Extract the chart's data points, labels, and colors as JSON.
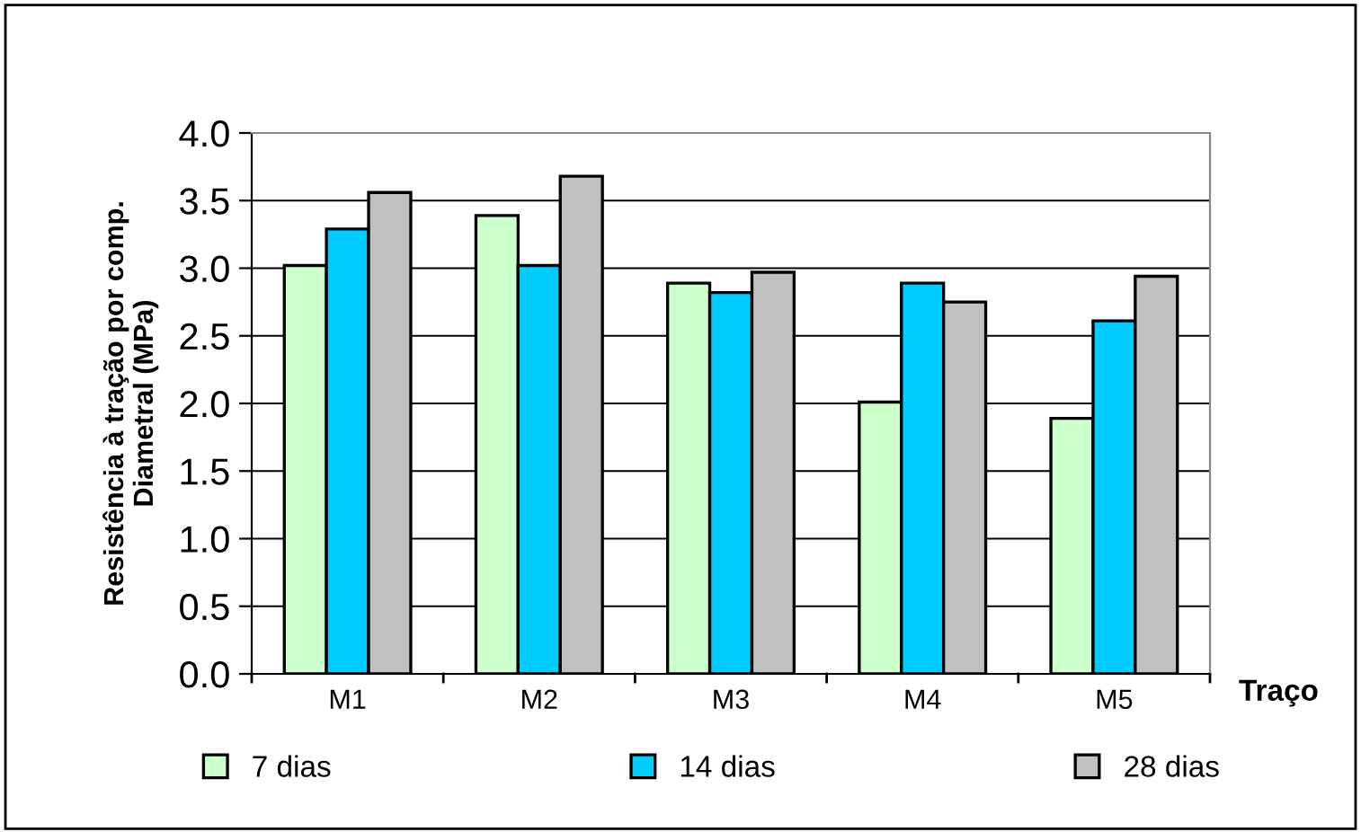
{
  "chart_data": {
    "type": "bar",
    "ylabel": "Resistência à tração por comp.\nDiametral (MPa)",
    "xlabel": "Traço",
    "categories": [
      "M1",
      "M2",
      "M3",
      "M4",
      "M5"
    ],
    "series": [
      {
        "name": "7 dias",
        "color": "#ccffcc",
        "values": [
          3.02,
          3.39,
          2.89,
          2.01,
          1.89
        ]
      },
      {
        "name": "14 dias",
        "color": "#00ccff",
        "values": [
          3.29,
          3.02,
          2.82,
          2.89,
          2.61
        ]
      },
      {
        "name": "28 dias",
        "color": "#c0c0c0",
        "values": [
          3.56,
          3.68,
          2.97,
          2.75,
          2.94
        ]
      }
    ],
    "ylim": [
      0,
      4
    ],
    "yticks": [
      {
        "value": 0,
        "label": "0.0"
      },
      {
        "value": 0.5,
        "label": "0.5"
      },
      {
        "value": 1,
        "label": "1.0"
      },
      {
        "value": 1.5,
        "label": "1.5"
      },
      {
        "value": 2,
        "label": "2.0"
      },
      {
        "value": 2.5,
        "label": "2.5"
      },
      {
        "value": 3,
        "label": "3.0"
      },
      {
        "value": 3.5,
        "label": "3.5"
      },
      {
        "value": 4,
        "label": "4.0"
      }
    ],
    "grid": "y",
    "legend": "bottom"
  }
}
